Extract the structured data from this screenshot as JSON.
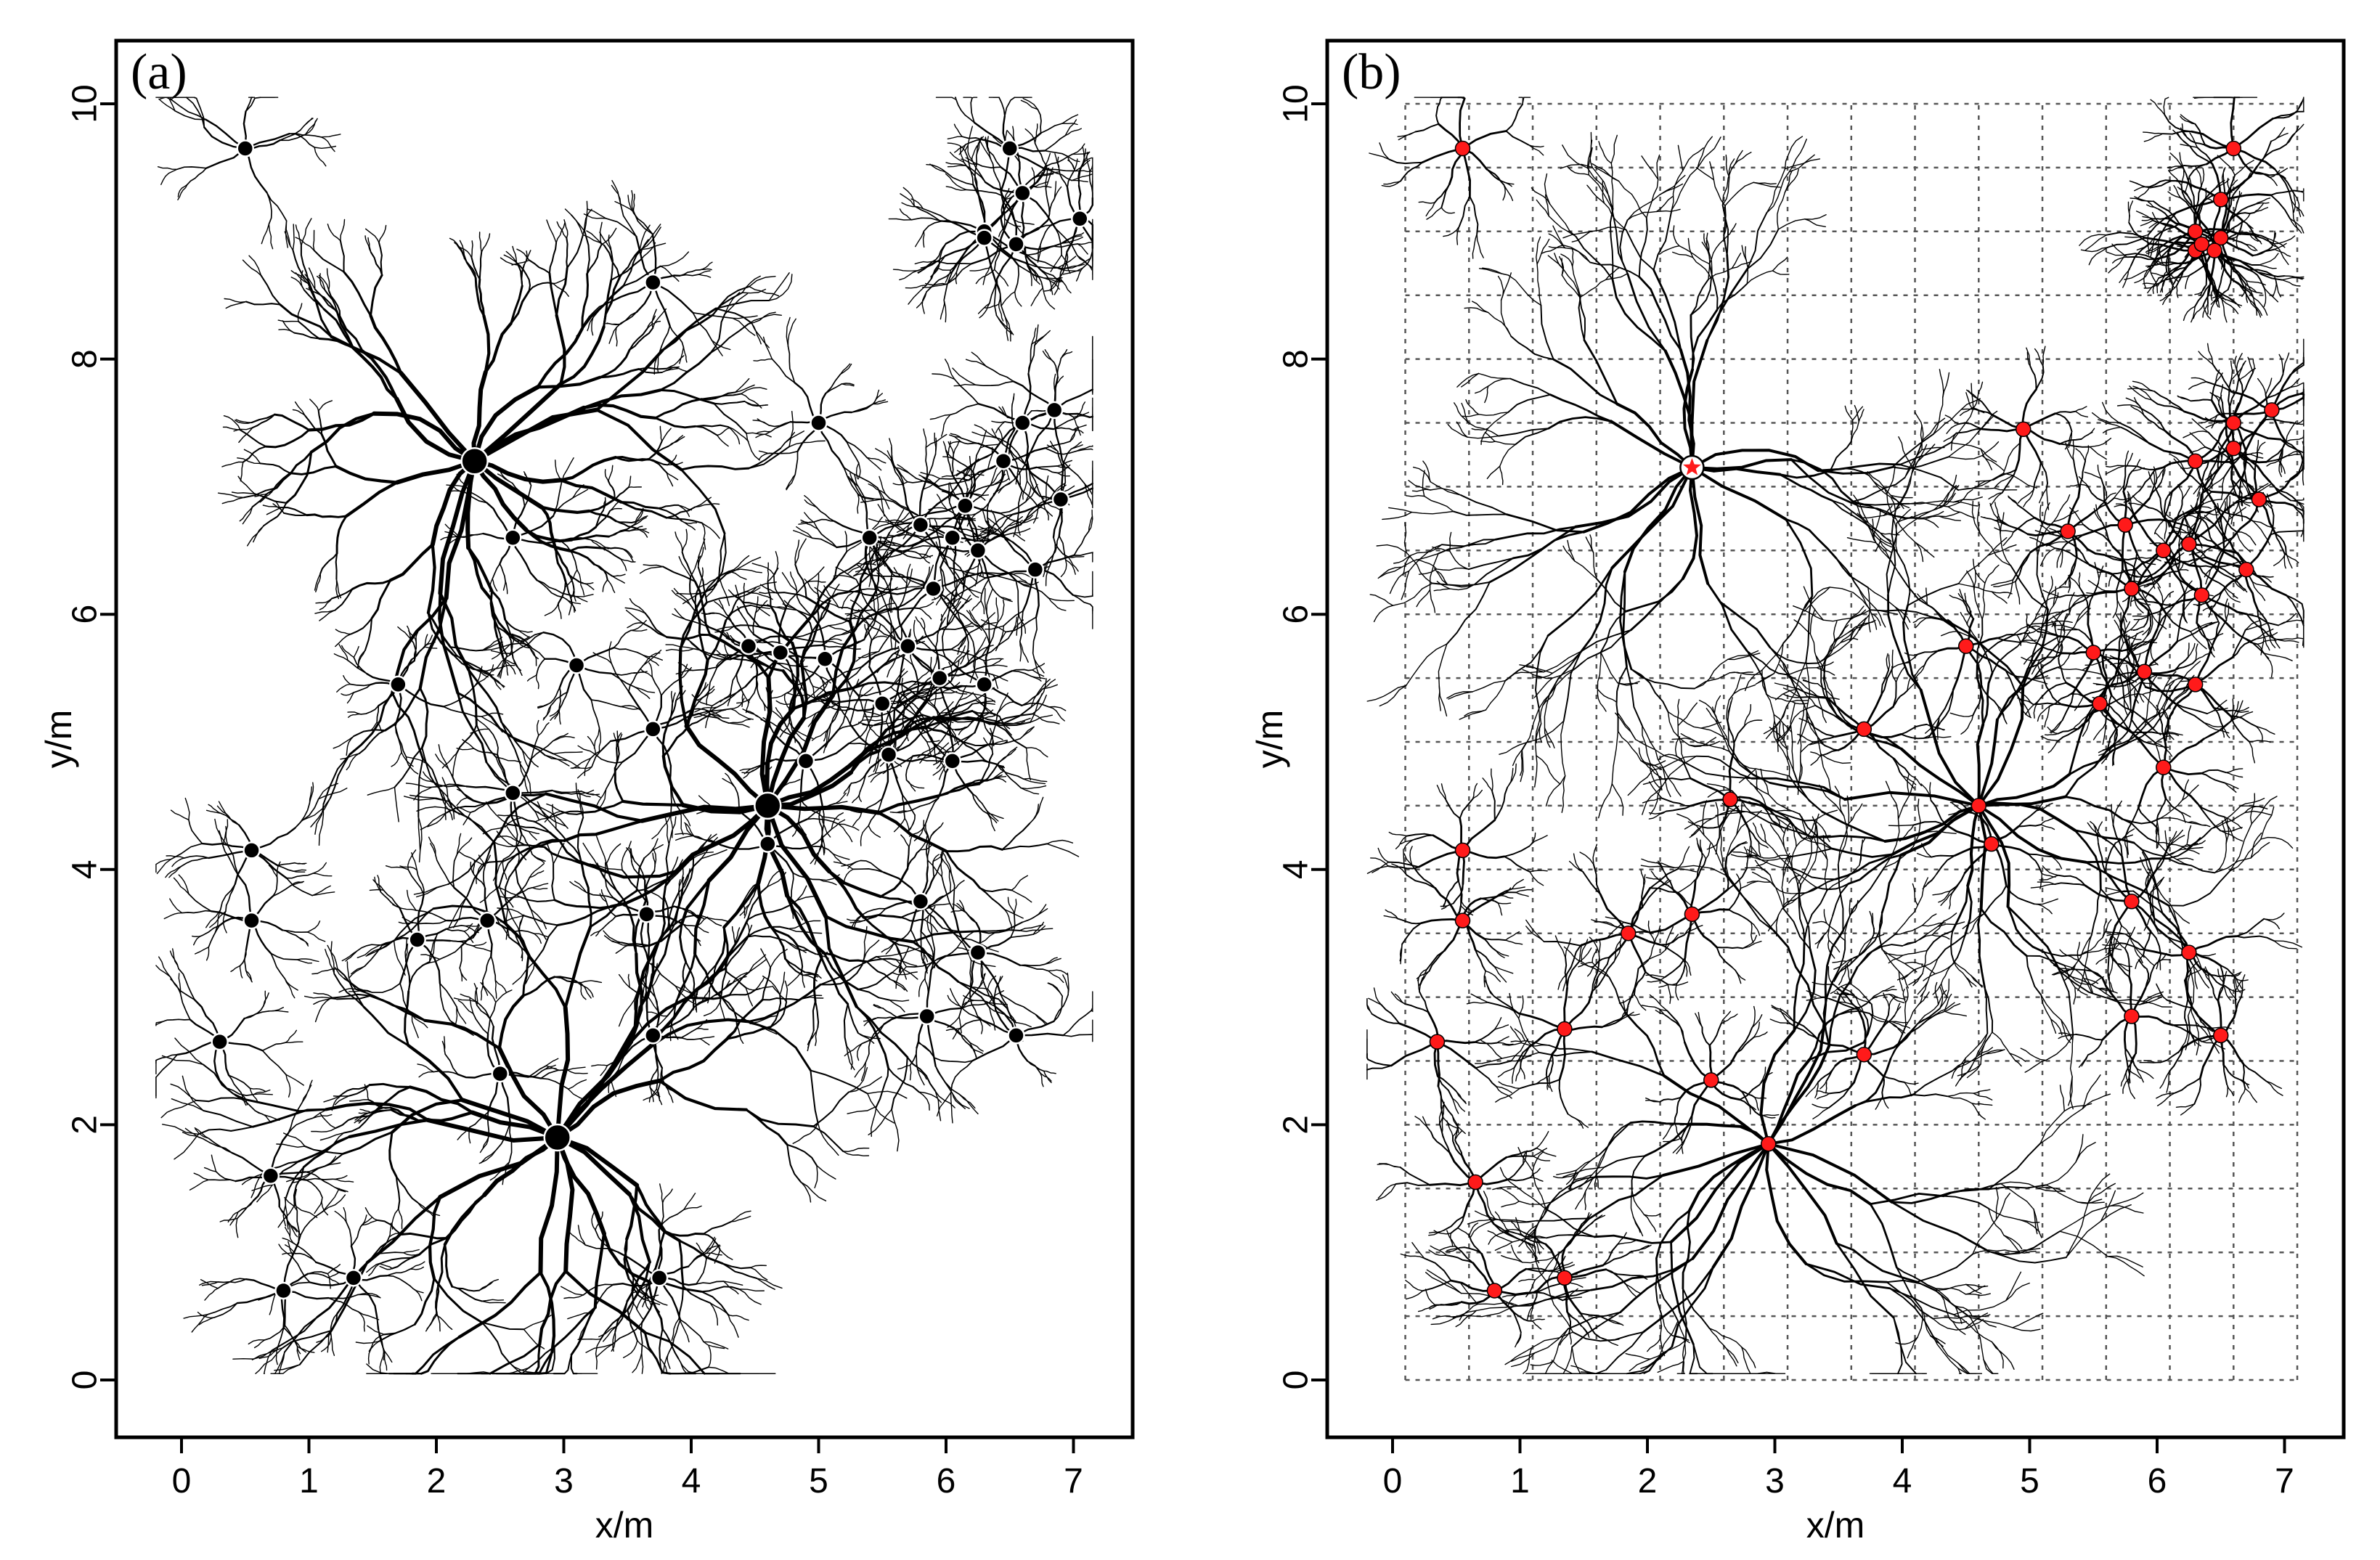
{
  "chart_data": [
    {
      "type": "scatter",
      "panel_label": "(a)",
      "xlabel": "x/m",
      "ylabel": "y/m",
      "xlim": [
        -0.5,
        7.5
      ],
      "ylim": [
        -0.5,
        10.5
      ],
      "xticks": [
        "0",
        "1",
        "2",
        "3",
        "4",
        "5",
        "6",
        "7"
      ],
      "yticks": [
        "0",
        "2",
        "4",
        "6",
        "8",
        "10"
      ],
      "grid": false,
      "colors": {
        "soma": "#000000",
        "dendrite": "#000000"
      },
      "series": [
        {
          "x": [
            2.3,
            2.95,
            4.6,
            0.5,
            0.3,
            1.7,
            2.6,
            0.55,
            0.55,
            1.85,
            2.4,
            3.65,
            2.5,
            3.7,
            3.75,
            0.7,
            1.35,
            0.8,
            3.7,
            5.0,
            4.6,
            4.7,
            3.7,
            3.1,
            2.6,
            5.8,
            5.85,
            6.25,
            6.55,
            6.85,
            6.6,
            6.45,
            6.3,
            6.5,
            6.6,
            7.05,
            5.4,
            5.8,
            6.05,
            5.9,
            6.25,
            6.9,
            6.7,
            6.15,
            5.7,
            4.45,
            5.05,
            5.5,
            5.95,
            6.3,
            6.05,
            5.55,
            4.9,
            6.3,
            6.55
          ],
          "y": [
            7.2,
            1.9,
            4.5,
            9.65,
            2.65,
            5.45,
            4.6,
            4.15,
            3.6,
            3.45,
            3.6,
            3.65,
            2.4,
            2.7,
            0.8,
            1.6,
            0.8,
            0.7,
            8.6,
            7.5,
            4.2,
            5.7,
            5.1,
            5.6,
            6.6,
            3.75,
            2.85,
            3.35,
            2.7,
            7.6,
            7.5,
            7.2,
            9.0,
            9.65,
            9.3,
            9.1,
            6.6,
            6.7,
            6.6,
            6.2,
            6.5,
            6.9,
            6.35,
            6.85,
            5.75,
            5.75,
            5.65,
            5.3,
            5.5,
            5.45,
            4.85,
            4.9,
            4.85,
            8.95,
            8.9
          ]
        }
      ]
    },
    {
      "type": "scatter",
      "panel_label": "(b)",
      "xlabel": "x/m",
      "ylabel": "y/m",
      "xlim": [
        -0.5,
        7.5
      ],
      "ylim": [
        -0.5,
        10.5
      ],
      "xticks": [
        "0",
        "1",
        "2",
        "3",
        "4",
        "5",
        "6",
        "7"
      ],
      "yticks": [
        "0",
        "2",
        "4",
        "6",
        "8",
        "10"
      ],
      "grid": true,
      "grid_extent": {
        "x": [
          0.1,
          7.1
        ],
        "y": [
          0,
          10
        ],
        "step": 0.5
      },
      "colors": {
        "soma": "#ff1a1a",
        "dendrite": "#000000",
        "grid": "#555555"
      },
      "series": [
        {
          "x": [
            2.35,
            2.95,
            4.6,
            0.55,
            0.35,
            2.65,
            0.55,
            0.55,
            1.85,
            2.35,
            1.35,
            2.5,
            3.7,
            0.65,
            1.35,
            0.8,
            3.7,
            4.95,
            4.5,
            4.7,
            5.8,
            5.8,
            6.25,
            6.5,
            5.3,
            5.75,
            6.05,
            6.25,
            5.8,
            6.35,
            6.7,
            6.8,
            6.3,
            6.6,
            6.6,
            6.9,
            5.5,
            5.9,
            6.3,
            5.55,
            6.05,
            6.3,
            6.6,
            6.3,
            6.35,
            6.5,
            6.5,
            6.45
          ],
          "y": [
            7.15,
            1.85,
            4.5,
            9.65,
            2.65,
            4.55,
            4.15,
            3.6,
            3.5,
            3.65,
            2.75,
            2.35,
            2.55,
            1.55,
            0.8,
            0.7,
            5.1,
            7.45,
            5.75,
            4.2,
            3.75,
            2.85,
            3.35,
            2.7,
            6.65,
            6.7,
            6.5,
            6.55,
            6.2,
            6.15,
            6.35,
            6.9,
            7.2,
            7.5,
            7.3,
            7.6,
            5.7,
            5.55,
            5.45,
            5.3,
            4.8,
            9.0,
            9.65,
            8.85,
            8.9,
            8.95,
            9.25,
            8.85
          ]
        }
      ]
    }
  ]
}
